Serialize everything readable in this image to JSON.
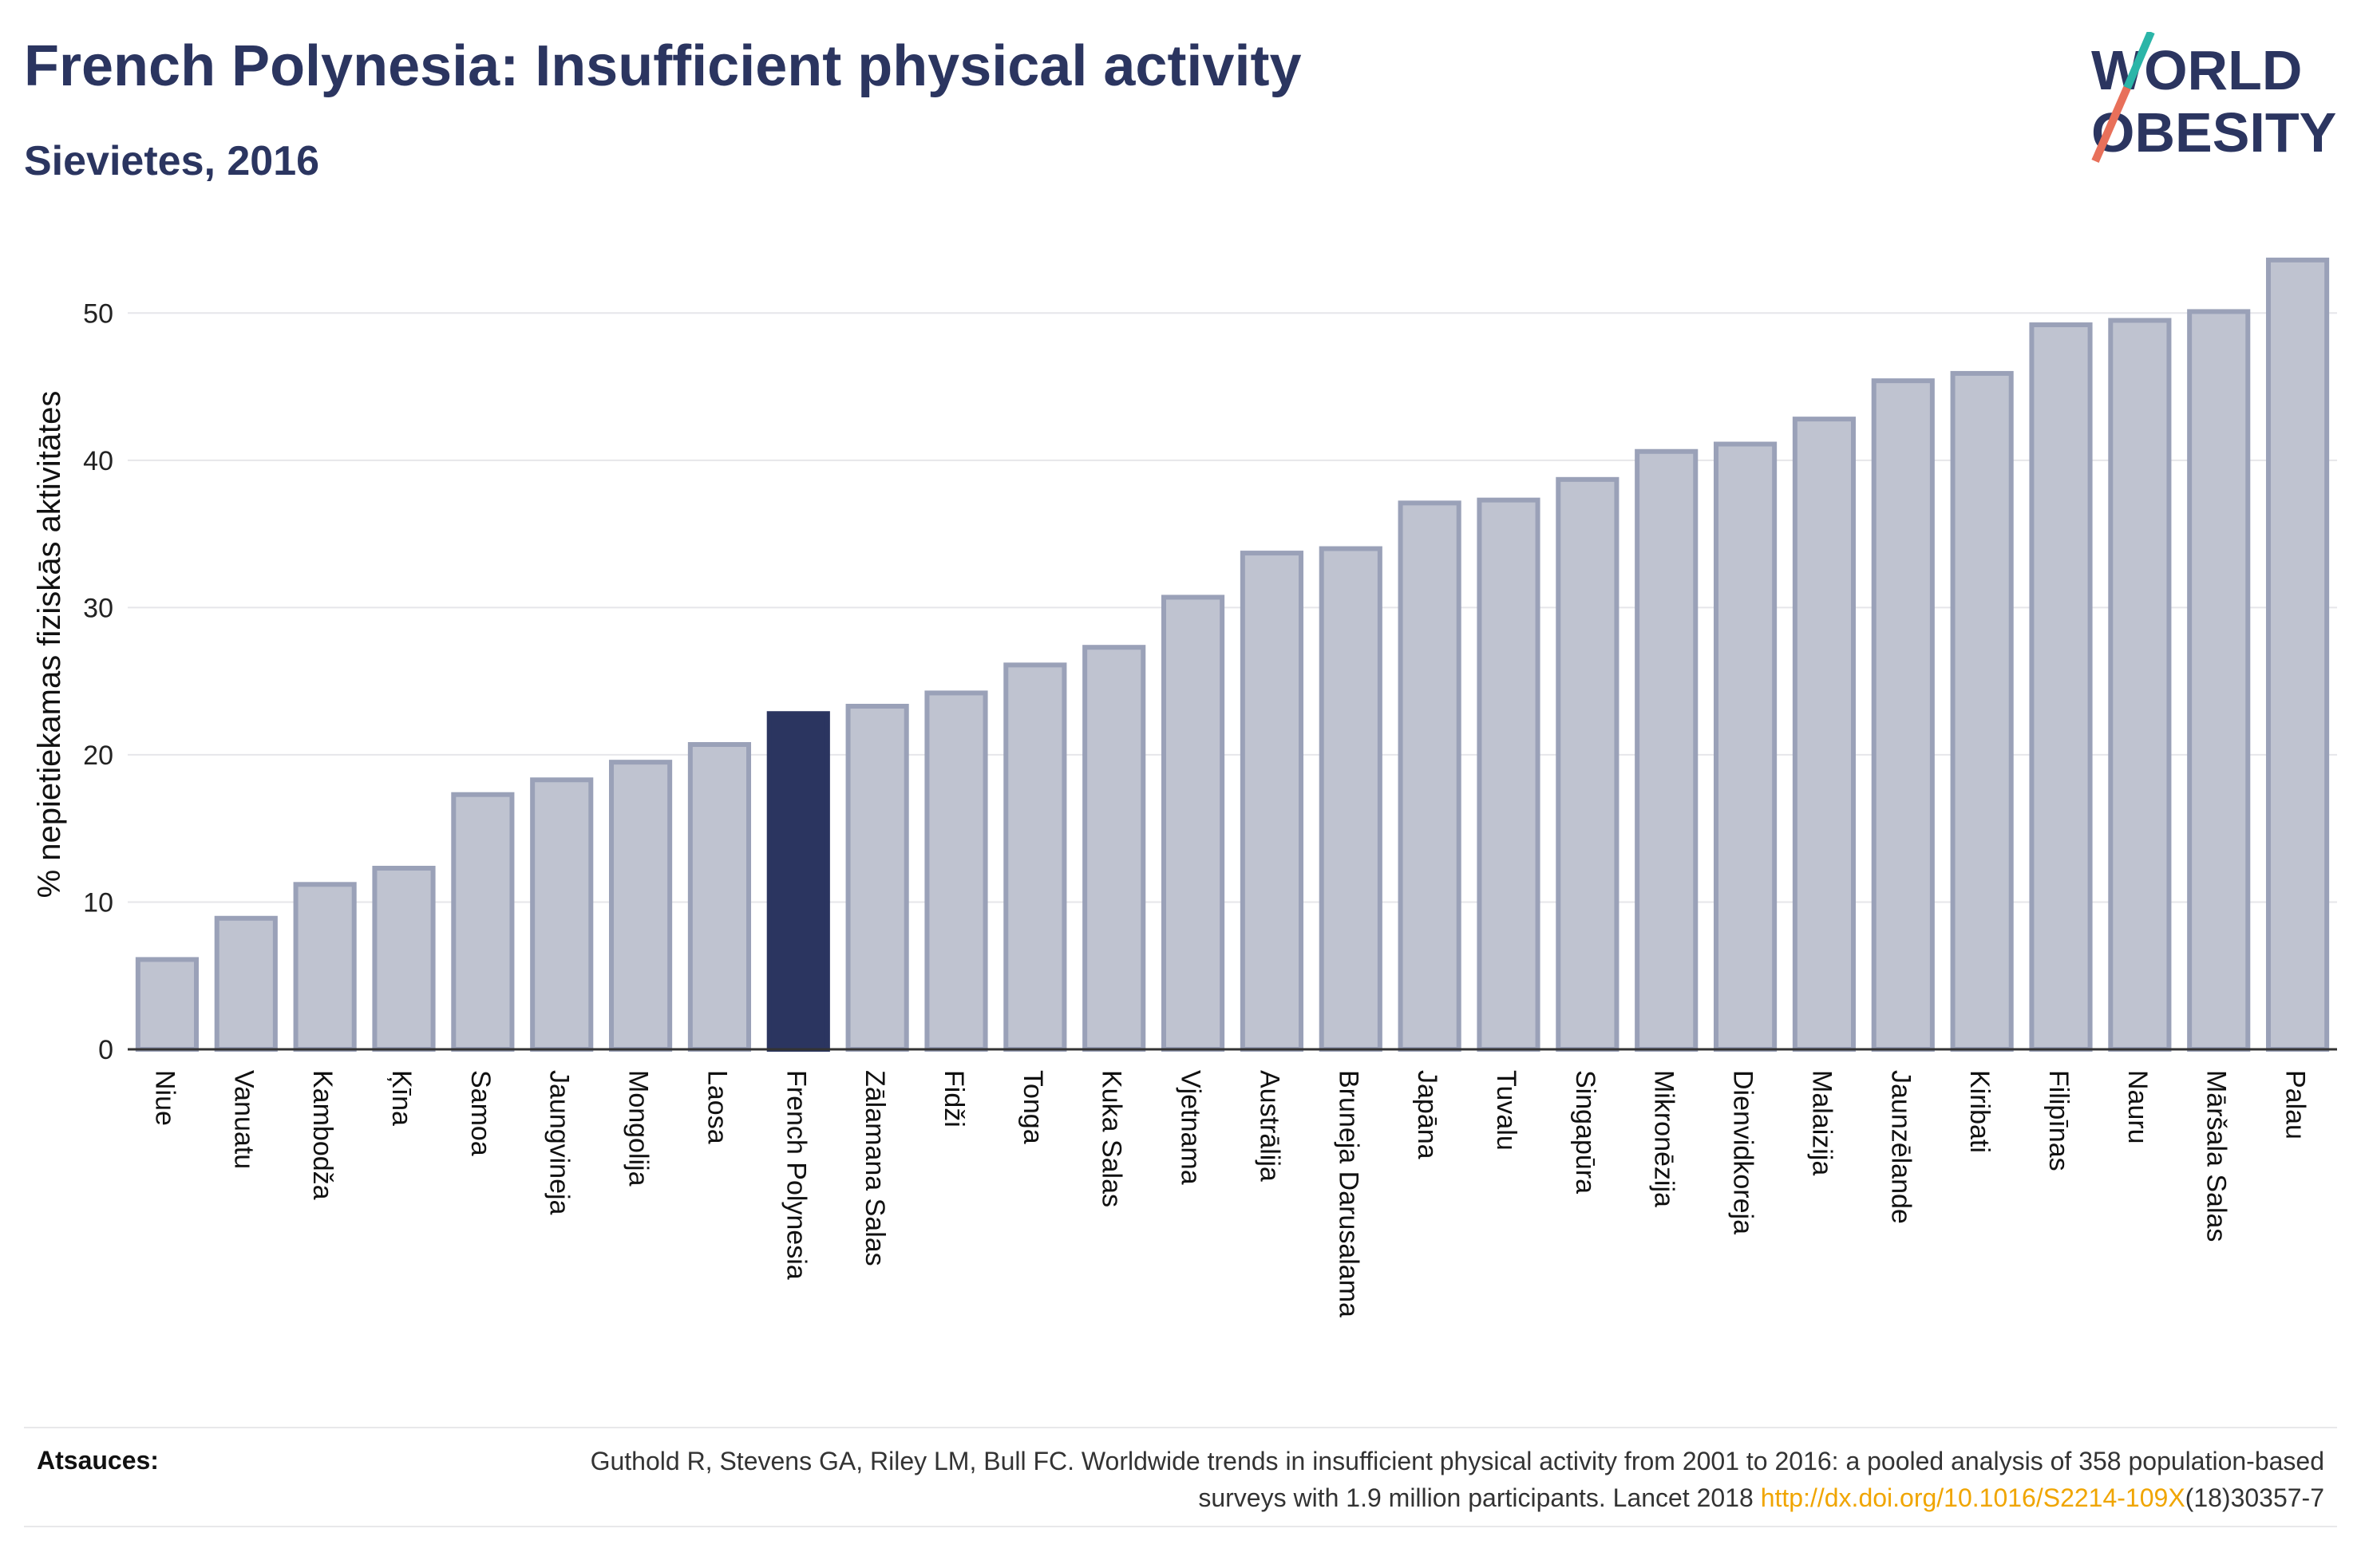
{
  "header": {
    "title": "French Polynesia: Insufficient physical activity",
    "subtitle": "Sievietes, 2016"
  },
  "logo": {
    "line1": "WORLD",
    "line2": "OBESITY",
    "icon": "world-obesity-logo"
  },
  "chart_data": {
    "type": "bar",
    "title": "French Polynesia: Insufficient physical activity",
    "subtitle": "Sievietes, 2016",
    "ylabel": "% nepietiekamas fiziskās aktivitātes",
    "xlabel": "",
    "ylim": [
      0,
      55
    ],
    "yticks": [
      0,
      10,
      20,
      30,
      40,
      50
    ],
    "grid": true,
    "highlight": "French Polynesia",
    "colors": {
      "bar": "#bfc3d0",
      "bar_edge": "#9aa1b8",
      "highlight": "#2b3560",
      "grid": "#e6e6ea",
      "axis": "#333333"
    },
    "categories": [
      "Niue",
      "Vanuatu",
      "Kambodža",
      "Ķīna",
      "Samoa",
      "Jaungvineja",
      "Mongolija",
      "Laosa",
      "French Polynesia",
      "Zālamana Salas",
      "Fidži",
      "Tonga",
      "Kuka Salas",
      "Vjetnama",
      "Austrālija",
      "Bruneja Darusalama",
      "Japāna",
      "Tuvalu",
      "Singapūra",
      "Mikronēzija",
      "Dienvidkoreja",
      "Malaizija",
      "Jaunzēlande",
      "Kiribati",
      "Filipīnas",
      "Nauru",
      "Māršala Salas",
      "Palau"
    ],
    "values": [
      6.1,
      8.9,
      11.2,
      12.3,
      17.3,
      18.3,
      19.5,
      20.7,
      22.8,
      23.3,
      24.2,
      26.1,
      27.3,
      30.7,
      33.7,
      34.0,
      37.1,
      37.3,
      38.7,
      40.6,
      41.1,
      42.8,
      45.4,
      45.9,
      49.2,
      49.5,
      50.1,
      53.6
    ]
  },
  "footer": {
    "sources_label": "Atsauces:",
    "citation_part1": "Guthold R, Stevens GA, Riley LM, Bull FC. Worldwide trends in insufficient physical activity from 2001 to 2016: a pooled analysis of 358 population-based surveys with 1.9 million participants. Lancet 2018 ",
    "citation_link": "http://dx.doi.org/10.1016/S2214-109X",
    "citation_part2": "(18)30357-7"
  }
}
